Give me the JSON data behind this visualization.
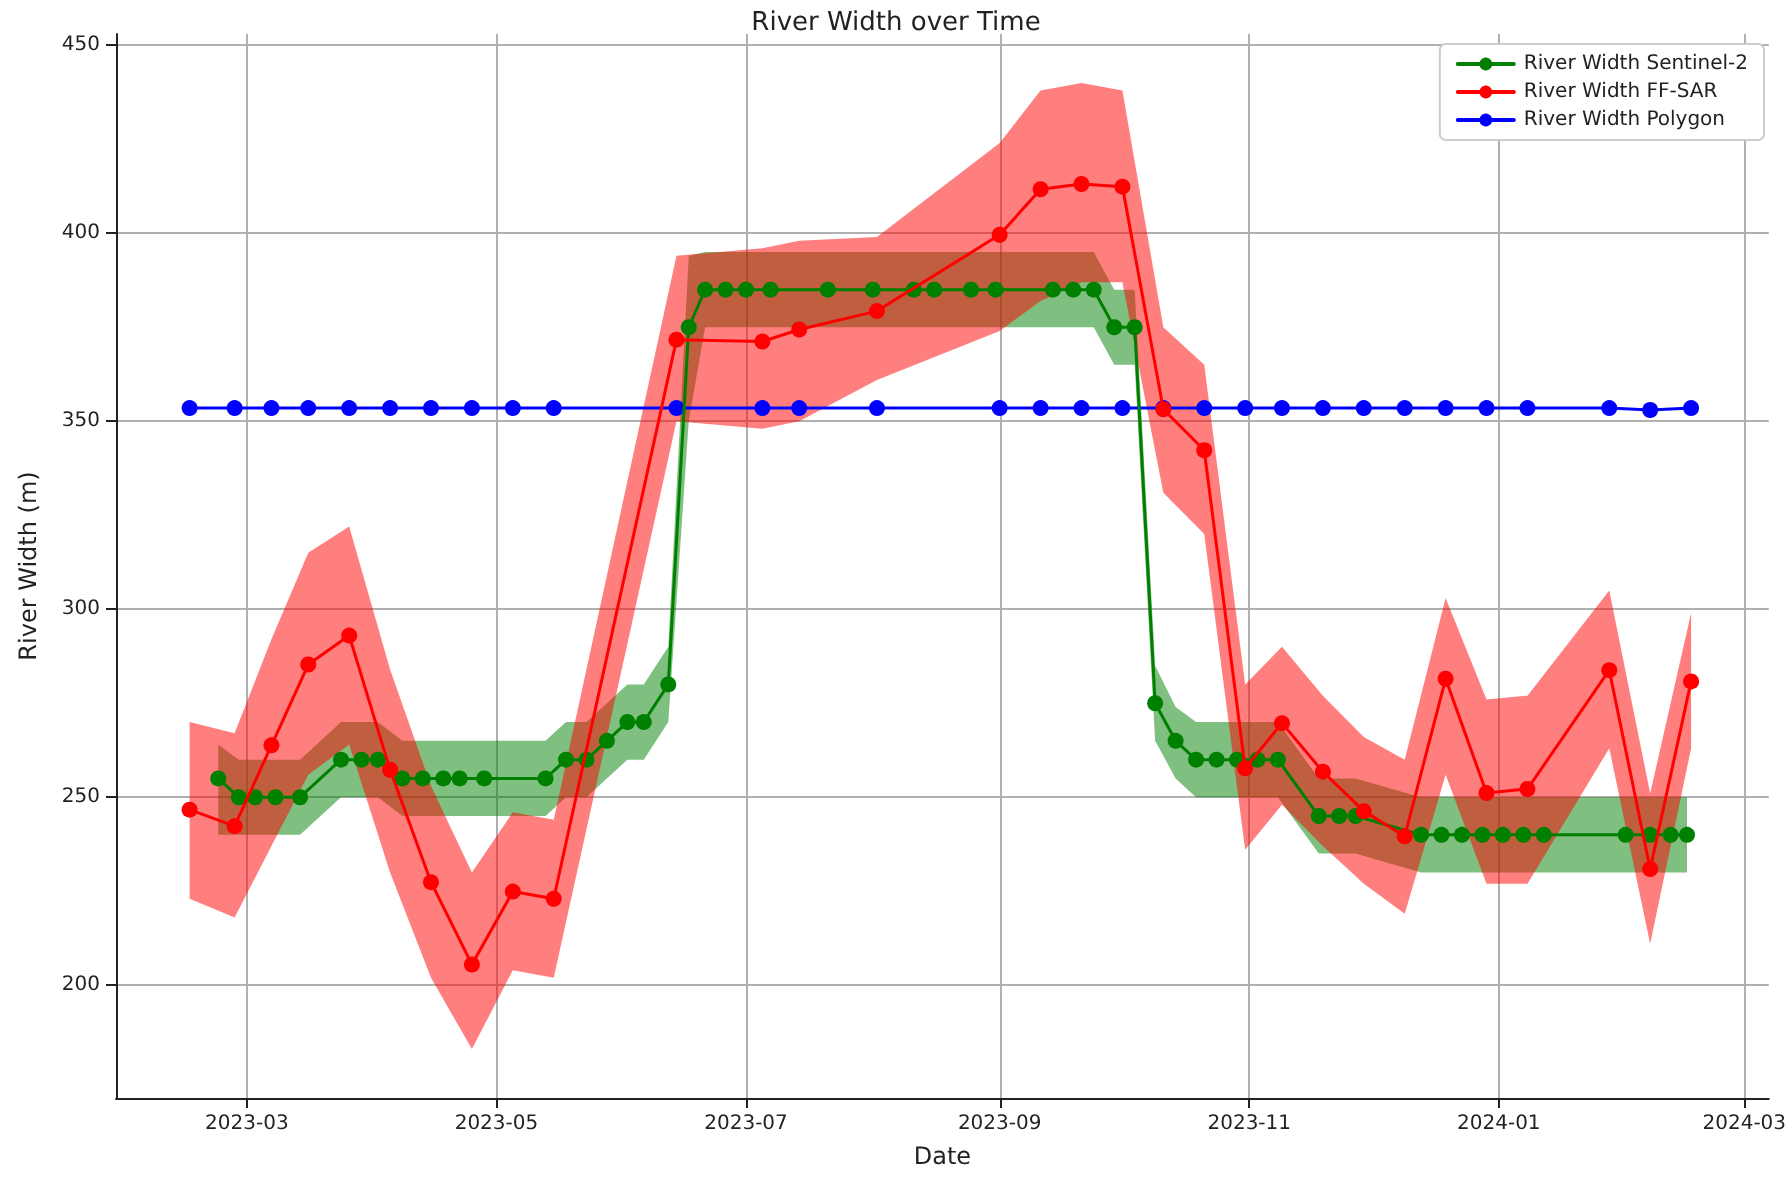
{
  "chart_data": {
    "type": "line",
    "title": "River Width over Time",
    "xlabel": "Date",
    "ylabel": "River Width (m)",
    "xlim": [
      "2023-01-28",
      "2024-03-07"
    ],
    "xticks": [
      {
        "value": "2023-03-01",
        "label": "2023-03"
      },
      {
        "value": "2023-05-01",
        "label": "2023-05"
      },
      {
        "value": "2023-07-01",
        "label": "2023-07"
      },
      {
        "value": "2023-09-01",
        "label": "2023-09"
      },
      {
        "value": "2023-11-01",
        "label": "2023-11"
      },
      {
        "value": "2024-01-01",
        "label": "2024-01"
      },
      {
        "value": "2024-03-01",
        "label": "2024-03"
      }
    ],
    "ylim": [
      170,
      453
    ],
    "yticks": [
      200,
      250,
      300,
      350,
      400,
      450
    ],
    "grid": true,
    "legend": "top right",
    "marker": "circle",
    "line_style": "solid",
    "series": [
      {
        "name": "River Width Sentinel-2",
        "color": "#008000",
        "x": [
          "2023-02-22",
          "2023-02-27",
          "2023-03-03",
          "2023-03-08",
          "2023-03-14",
          "2023-03-24",
          "2023-03-29",
          "2023-04-02",
          "2023-04-08",
          "2023-04-13",
          "2023-04-18",
          "2023-04-22",
          "2023-04-28",
          "2023-05-13",
          "2023-05-18",
          "2023-05-23",
          "2023-05-28",
          "2023-06-02",
          "2023-06-06",
          "2023-06-12",
          "2023-06-17",
          "2023-06-21",
          "2023-06-26",
          "2023-07-01",
          "2023-07-07",
          "2023-07-21",
          "2023-08-01",
          "2023-08-11",
          "2023-08-16",
          "2023-08-25",
          "2023-08-31",
          "2023-09-14",
          "2023-09-19",
          "2023-09-24",
          "2023-09-29",
          "2023-10-04",
          "2023-10-09",
          "2023-10-14",
          "2023-10-19",
          "2023-10-24",
          "2023-10-29",
          "2023-11-03",
          "2023-11-08",
          "2023-11-18",
          "2023-11-23",
          "2023-11-27",
          "2023-12-13",
          "2023-12-18",
          "2023-12-23",
          "2023-12-28",
          "2024-01-02",
          "2024-01-07",
          "2024-01-12",
          "2024-02-01",
          "2024-02-07",
          "2024-02-12",
          "2024-02-16"
        ],
        "values": [
          255,
          250,
          250,
          250,
          250,
          260,
          260,
          260,
          255,
          255,
          255,
          255,
          255,
          255,
          260,
          260,
          265,
          270,
          270,
          280,
          375,
          385,
          385,
          385,
          385,
          385,
          385,
          385,
          385,
          385,
          385,
          385,
          385,
          385,
          375,
          375,
          275,
          265,
          260,
          260,
          260,
          260,
          260,
          245,
          245,
          245,
          240,
          240,
          240,
          240,
          240,
          240,
          240,
          240,
          240,
          240,
          240
        ],
        "upper": [
          264,
          260,
          260,
          260,
          260,
          270,
          270,
          270,
          265,
          265,
          265,
          265,
          265,
          265,
          270,
          270,
          275,
          280,
          280,
          290,
          394,
          395,
          395,
          395,
          395,
          395,
          395,
          395,
          395,
          395,
          395,
          395,
          395,
          395,
          385,
          385,
          285,
          274,
          270,
          270,
          270,
          270,
          270,
          255,
          255,
          255,
          250,
          250,
          250,
          250,
          250,
          250,
          250,
          250,
          250,
          250,
          250
        ],
        "lower": [
          240,
          240,
          240,
          240,
          240,
          250,
          250,
          250,
          245,
          245,
          245,
          245,
          245,
          245,
          250,
          250,
          255,
          260,
          260,
          270,
          350,
          375,
          375,
          375,
          375,
          375,
          375,
          375,
          375,
          375,
          375,
          375,
          375,
          375,
          365,
          365,
          265,
          255,
          250,
          250,
          250,
          250,
          250,
          235,
          235,
          235,
          230,
          230,
          230,
          230,
          230,
          230,
          230,
          230,
          230,
          230,
          230
        ]
      },
      {
        "name": "River Width FF-SAR",
        "color": "#ff0000",
        "x": [
          "2023-02-15",
          "2023-02-26",
          "2023-03-07",
          "2023-03-16",
          "2023-03-26",
          "2023-04-05",
          "2023-04-15",
          "2023-04-25",
          "2023-05-05",
          "2023-05-15",
          "2023-06-14",
          "2023-07-05",
          "2023-07-14",
          "2023-08-02",
          "2023-09-01",
          "2023-09-11",
          "2023-09-21",
          "2023-10-01",
          "2023-10-11",
          "2023-10-21",
          "2023-10-31",
          "2023-11-09",
          "2023-11-19",
          "2023-11-29",
          "2023-12-09",
          "2023-12-19",
          "2023-12-29",
          "2024-01-08",
          "2024-01-28",
          "2024-02-07",
          "2024-02-17"
        ],
        "values": [
          246.7,
          242.3,
          263.8,
          285.3,
          293,
          257.3,
          227.4,
          205.5,
          224.9,
          223,
          371.7,
          371.2,
          374.4,
          379.3,
          399.6,
          411.7,
          413.1,
          412.4,
          353.2,
          342.3,
          257.7,
          269.7,
          256.8,
          246.3,
          239.6,
          281.5,
          251.1,
          252.2,
          283.8,
          230.9,
          280.8
        ],
        "upper": [
          270,
          267,
          292,
          315,
          322,
          284,
          253,
          230,
          246,
          244,
          394,
          396,
          398,
          399,
          424,
          438,
          440,
          438,
          375,
          365,
          280,
          290,
          277,
          266,
          260,
          303,
          276,
          277,
          305,
          251,
          299
        ],
        "lower": [
          223,
          218,
          237,
          256,
          264,
          230,
          202,
          183,
          204,
          202,
          350,
          348,
          350,
          361,
          374,
          382,
          387,
          387,
          331,
          320,
          236,
          248,
          237,
          227,
          219,
          256,
          227,
          227,
          263,
          211,
          263
        ]
      },
      {
        "name": "River Width Polygon",
        "color": "#0000ff",
        "x": [
          "2023-02-15",
          "2023-02-26",
          "2023-03-07",
          "2023-03-16",
          "2023-03-26",
          "2023-04-05",
          "2023-04-15",
          "2023-04-25",
          "2023-05-05",
          "2023-05-15",
          "2023-06-14",
          "2023-07-05",
          "2023-07-14",
          "2023-08-02",
          "2023-09-01",
          "2023-09-11",
          "2023-09-21",
          "2023-10-01",
          "2023-10-11",
          "2023-10-21",
          "2023-10-31",
          "2023-11-09",
          "2023-11-19",
          "2023-11-29",
          "2023-12-09",
          "2023-12-19",
          "2023-12-29",
          "2024-01-08",
          "2024-01-28",
          "2024-02-07",
          "2024-02-17"
        ],
        "values": [
          353.5,
          353.5,
          353.5,
          353.5,
          353.5,
          353.5,
          353.5,
          353.5,
          353.5,
          353.5,
          353.5,
          353.5,
          353.5,
          353.5,
          353.5,
          353.5,
          353.5,
          353.5,
          353.5,
          353.5,
          353.5,
          353.5,
          353.5,
          353.5,
          353.5,
          353.5,
          353.5,
          353.5,
          353.5,
          353,
          353.5
        ]
      }
    ]
  }
}
